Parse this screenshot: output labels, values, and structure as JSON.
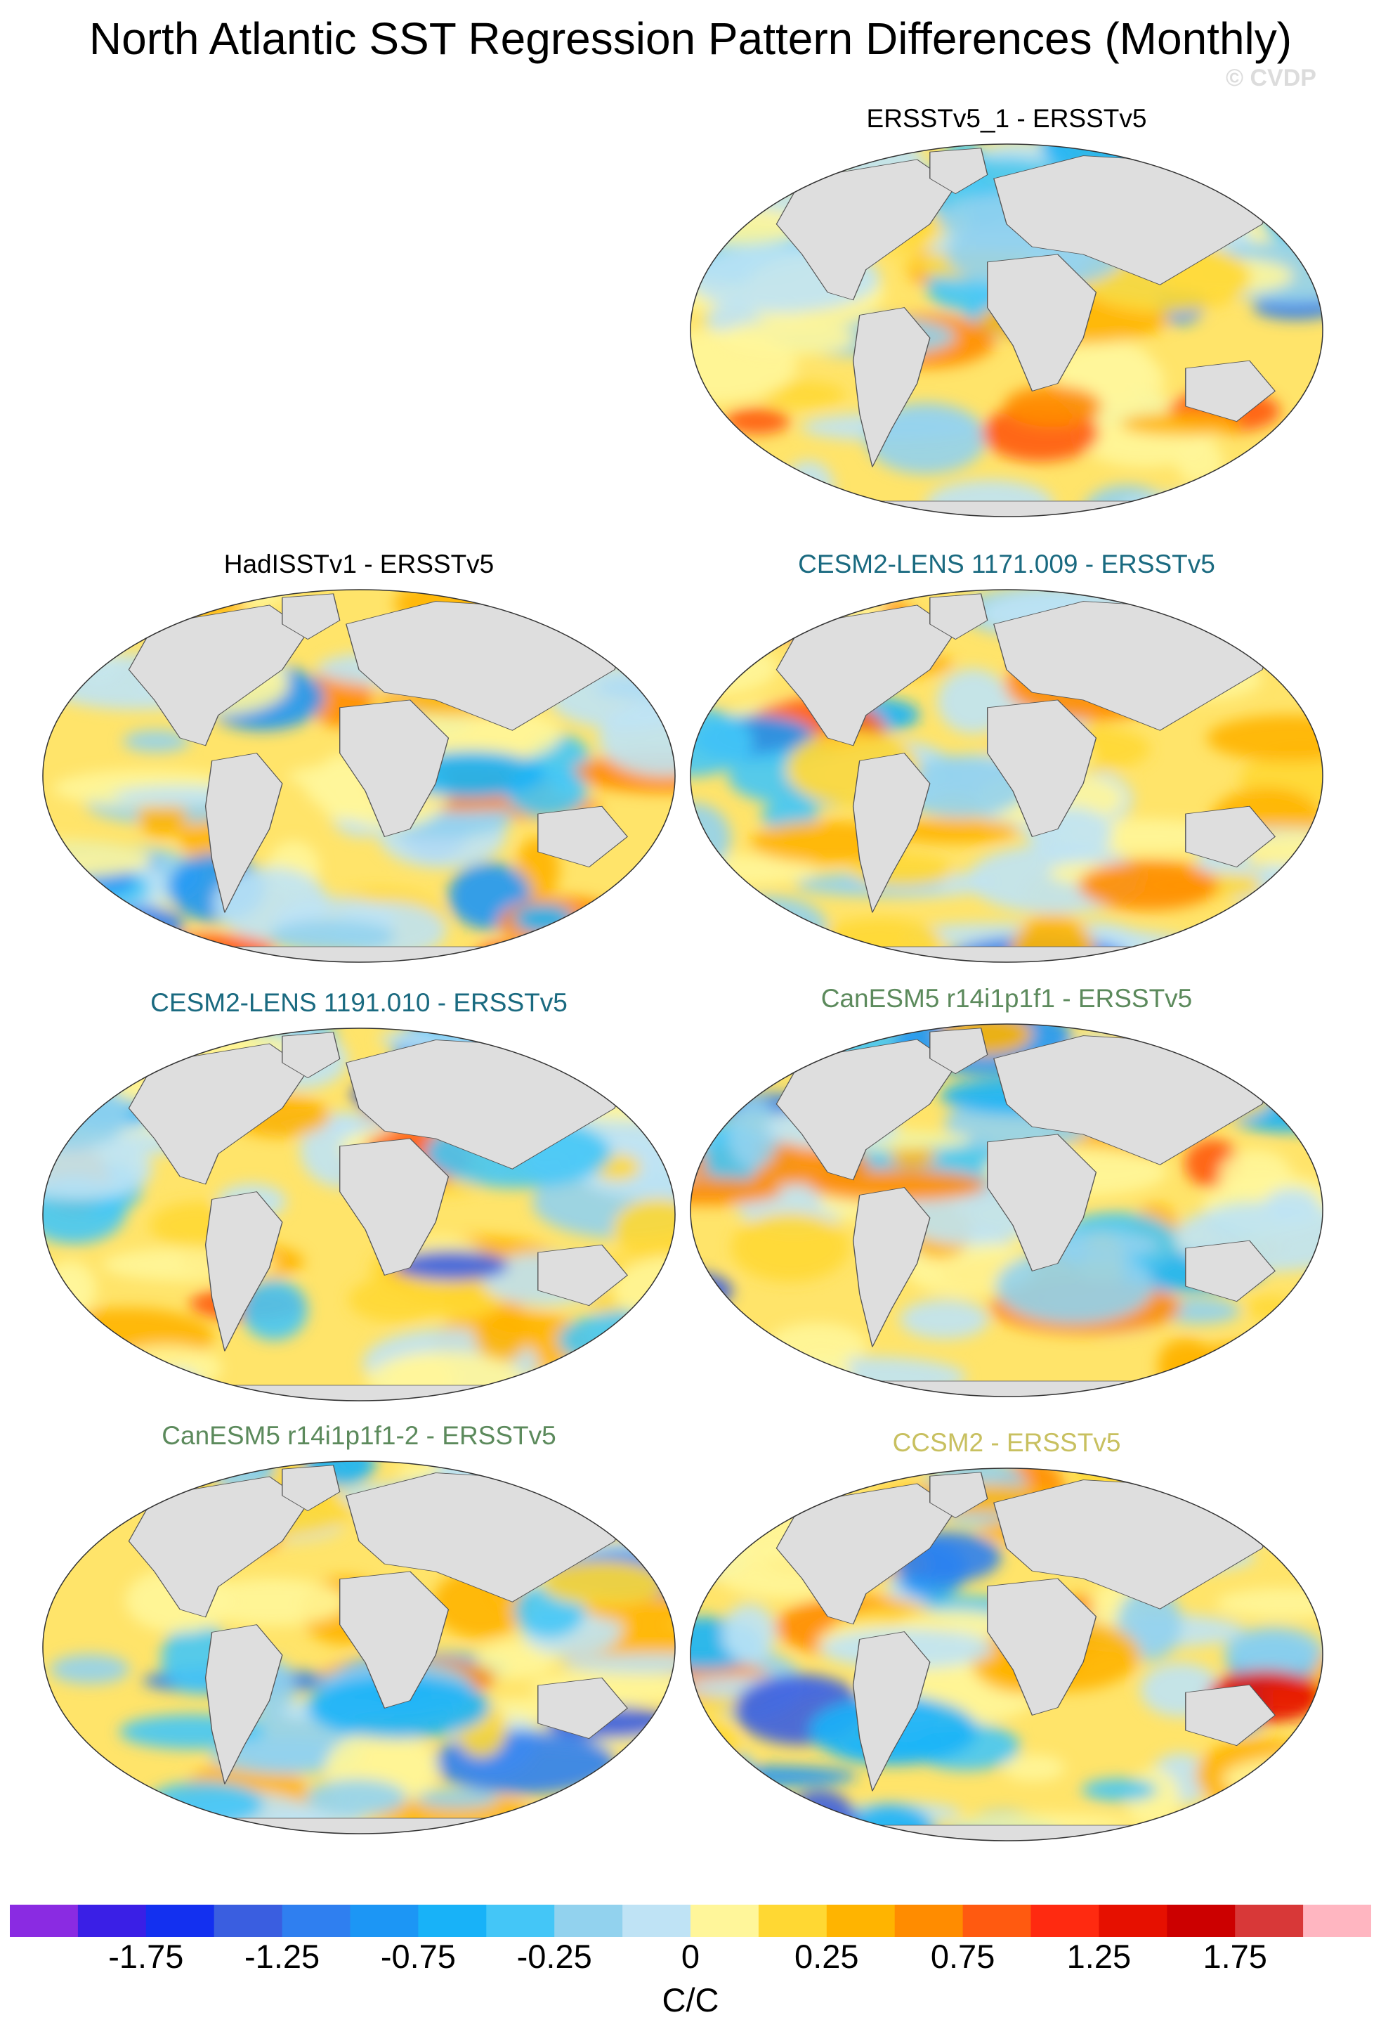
{
  "title": "North Atlantic SST Regression Pattern Differences (Monthly)",
  "credit": "© CVDP",
  "panels": [
    {
      "id": "p1",
      "title": "ERSSTv5_1 - ERSSTv5",
      "title_color": "#000000"
    },
    {
      "id": "p2",
      "title": "HadISSTv1 - ERSSTv5",
      "title_color": "#000000"
    },
    {
      "id": "p3",
      "title": "CESM2-LENS 1171.009 - ERSSTv5",
      "title_color": "#1a6a80"
    },
    {
      "id": "p4",
      "title": "CESM2-LENS 1191.010 - ERSSTv5",
      "title_color": "#1a6a80"
    },
    {
      "id": "p5",
      "title": "CanESM5 r14i1p1f1 - ERSSTv5",
      "title_color": "#5c8a5c"
    },
    {
      "id": "p6",
      "title": "CanESM5 r14i1p1f1-2 - ERSSTv5",
      "title_color": "#5c8a5c"
    },
    {
      "id": "p7",
      "title": "CCSM2 - ERSSTv5",
      "title_color": "#c8c060"
    }
  ],
  "chart_data": {
    "type": "heatmap",
    "title": "North Atlantic SST Regression Pattern Differences (Monthly)",
    "colorbar": {
      "units": "C/C",
      "tick_labels": [
        "-1.75",
        "-1.25",
        "-0.75",
        "-0.25",
        "0",
        "0.25",
        "0.75",
        "1.25",
        "1.75"
      ],
      "colors": [
        "#8a2be2",
        "#3a1fe6",
        "#1330f0",
        "#3a5ee0",
        "#2f7ff0",
        "#1c96f5",
        "#18b2f8",
        "#44c6f7",
        "#92d2ee",
        "#bfe3f5",
        "#fff69a",
        "#ffd833",
        "#ffb400",
        "#ff8c00",
        "#ff5a10",
        "#ff2a10",
        "#e61000",
        "#cc0000",
        "#d83838",
        "#ffb6c1"
      ],
      "levels": [
        -2.0,
        -1.75,
        -1.5,
        -1.25,
        -1.0,
        -0.75,
        -0.5,
        -0.25,
        -0.1,
        0,
        0.1,
        0.25,
        0.5,
        0.75,
        1.0,
        1.25,
        1.5,
        1.75,
        2.0
      ]
    },
    "land_color": "#dedede",
    "ocean_base": "#ffd84a"
  }
}
